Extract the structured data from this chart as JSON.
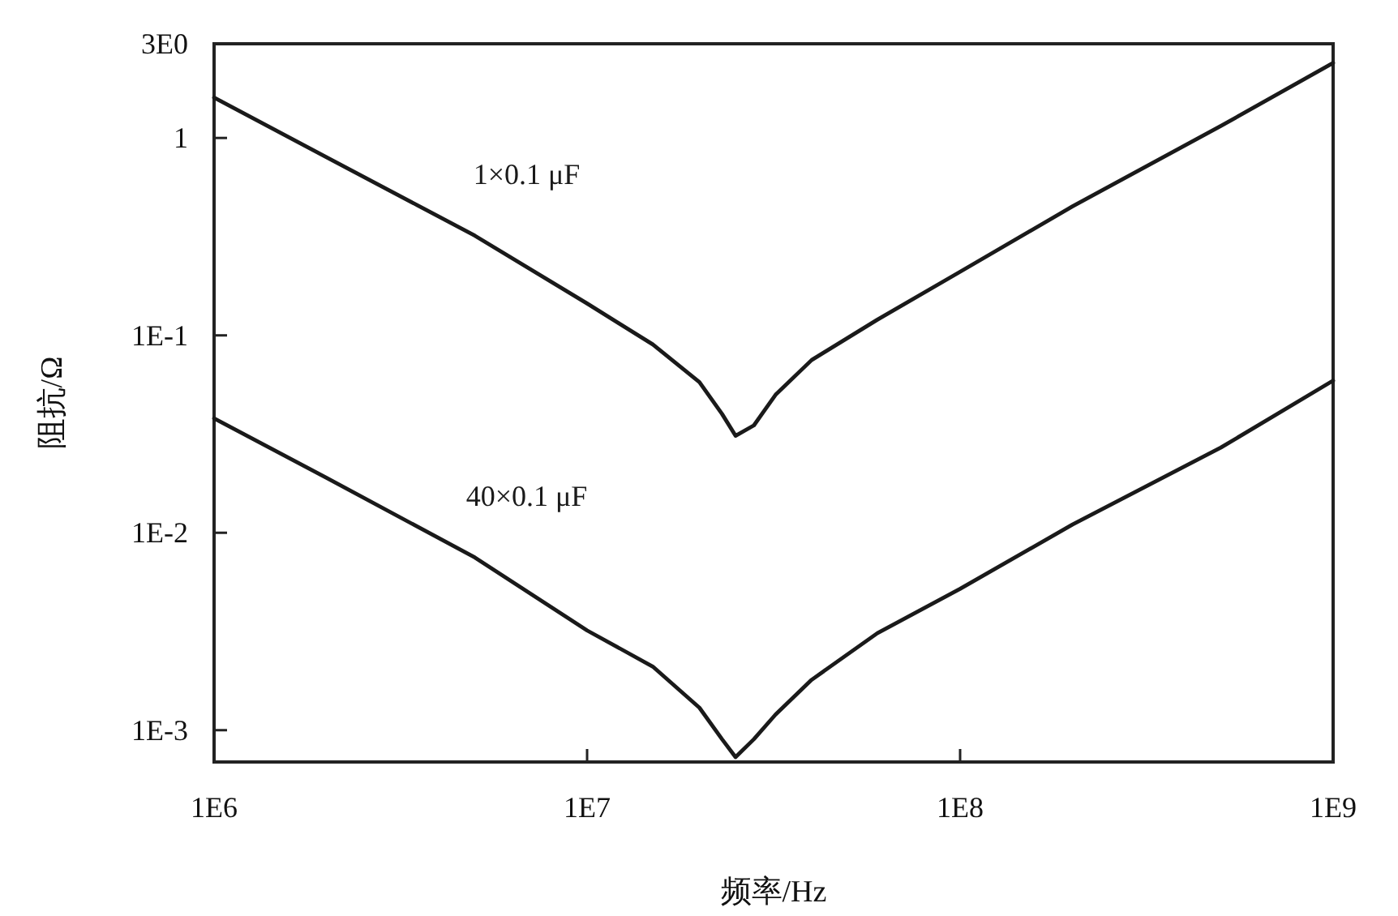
{
  "chart_data": {
    "type": "line",
    "xlabel": "频率/Hz",
    "ylabel": "阻抗/Ω",
    "log": "xy",
    "xlim": [
      1000000,
      1000000000
    ],
    "xticks": [
      {
        "value": 1000000,
        "label": "1E6"
      },
      {
        "value": 10000000,
        "label": "1E7"
      },
      {
        "value": 100000000,
        "label": "1E8"
      },
      {
        "value": 1000000000,
        "label": "1E9"
      }
    ],
    "ylim": [
      0.00069,
      3
    ],
    "yticks": [
      {
        "value": 3,
        "label": "3E0"
      },
      1,
      {
        "value": 0.1,
        "label": "1E-1"
      },
      {
        "value": 0.01,
        "label": "1E-2"
      },
      {
        "value": 0.001,
        "label": "1E-3"
      }
    ],
    "x": [
      1000000,
      2000000,
      5000000,
      10000000,
      15000000,
      20000000,
      23000000,
      25000000,
      28000000,
      32000000,
      40000000,
      60000000,
      100000000,
      200000000,
      500000000,
      1000000000
    ],
    "grid": false,
    "legend": false,
    "marker": "none",
    "line_style": "solid",
    "series": [
      {
        "name": "1×0.1 μF",
        "color": "#1a1a1a",
        "values": [
          1.6,
          0.8,
          0.32,
          0.145,
          0.09,
          0.058,
          0.04,
          0.031,
          0.035,
          0.05,
          0.075,
          0.12,
          0.21,
          0.45,
          1.15,
          2.4
        ]
      },
      {
        "name": "40×0.1 μF",
        "color": "#1a1a1a",
        "values": [
          0.038,
          0.019,
          0.0075,
          0.0032,
          0.0021,
          0.0013,
          0.0009,
          0.00073,
          0.0009,
          0.0012,
          0.0018,
          0.0031,
          0.0052,
          0.011,
          0.027,
          0.059
        ]
      }
    ]
  }
}
